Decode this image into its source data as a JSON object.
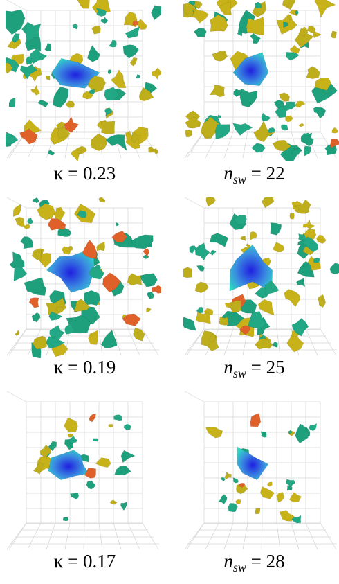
{
  "panels": [
    {
      "caption": {
        "lhs": "κ",
        "rhs": "= 0.23"
      }
    },
    {
      "caption": {
        "lhs": "n",
        "sub": "sw",
        "rhs": "= 22"
      }
    },
    {
      "caption": {
        "lhs": "κ",
        "rhs": "= 0.19"
      }
    },
    {
      "caption": {
        "lhs": "n",
        "sub": "sw",
        "rhs": "= 25"
      }
    },
    {
      "caption": {
        "lhs": "κ",
        "rhs": "= 0.17"
      }
    },
    {
      "caption": {
        "lhs": "n",
        "sub": "sw",
        "rhs": "= 28"
      }
    }
  ]
}
